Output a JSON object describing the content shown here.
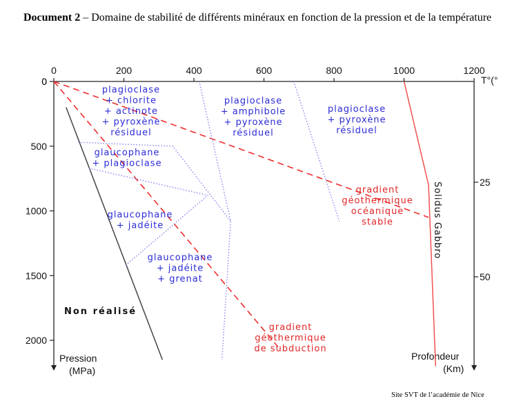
{
  "document": {
    "label": "Document 2",
    "title": " – Domaine de stabilité de différents minéraux en fonction de la pression et de la température",
    "credit": "Site SVT de l’académie de Nice"
  },
  "chart_data": {
    "type": "line",
    "x_axis": {
      "label": "T°(°",
      "ticks": [
        0,
        200,
        400,
        600,
        800,
        1000,
        1200
      ],
      "range": [
        0,
        1200
      ]
    },
    "y_axis_left": {
      "label_line1": "Pression",
      "label_line2": "(MPa)",
      "ticks": [
        0,
        500,
        1000,
        1500,
        2000
      ],
      "range": [
        0,
        2200
      ]
    },
    "y_axis_right": {
      "label_line1": "Profondeur",
      "label_line2": "(Km)",
      "ticks": [
        25,
        50
      ]
    },
    "series": [
      {
        "name": "Solidus Gabbro",
        "style": "solid",
        "color": "#f05050",
        "points": [
          [
            1000,
            0
          ],
          [
            1070,
            800
          ],
          [
            1090,
            2200
          ]
        ]
      },
      {
        "name": "gradient géothermique océanique stable",
        "style": "dashed",
        "color": "#ee2c2c",
        "points": [
          [
            0,
            0
          ],
          [
            1070,
            1050
          ]
        ]
      },
      {
        "name": "gradient géothermique de subduction",
        "style": "dashed",
        "color": "#ee2c2c",
        "points": [
          [
            0,
            0
          ],
          [
            640,
            2050
          ]
        ]
      },
      {
        "name": "",
        "style": "solid",
        "color": "#444444",
        "points": [
          [
            35,
            200
          ],
          [
            310,
            2150
          ]
        ]
      },
      {
        "name": "",
        "style": "dotted",
        "color": "#7a7af0",
        "points": [
          [
            415,
            0
          ],
          [
            505,
            1080
          ],
          [
            480,
            2150
          ]
        ]
      },
      {
        "name": "",
        "style": "dotted",
        "color": "#7a7af0",
        "points": [
          [
            685,
            0
          ],
          [
            815,
            1080
          ]
        ]
      },
      {
        "name": "",
        "style": "dotted",
        "color": "#7a7af0",
        "points": [
          [
            70,
            470
          ],
          [
            340,
            500
          ],
          [
            505,
            1080
          ]
        ]
      },
      {
        "name": "",
        "style": "dotted",
        "color": "#7a7af0",
        "points": [
          [
            100,
            670
          ],
          [
            440,
            880
          ]
        ]
      },
      {
        "name": "",
        "style": "dotted",
        "color": "#7a7af0",
        "points": [
          [
            205,
            1420
          ],
          [
            440,
            880
          ]
        ]
      }
    ],
    "field_labels": [
      {
        "id": "f1",
        "lines": [
          "plagioclase",
          "+ chlorite",
          "+ actinote",
          "+ pyroxène",
          "résiduel"
        ]
      },
      {
        "id": "f2",
        "lines": [
          "plagioclase",
          "+ amphibole",
          "+ pyroxène",
          "résiduel"
        ]
      },
      {
        "id": "f3",
        "lines": [
          "plagioclase",
          "+ pyroxène",
          "résiduel"
        ]
      },
      {
        "id": "f4",
        "lines": [
          "glaucophane",
          "+ plagioclase"
        ]
      },
      {
        "id": "f5",
        "lines": [
          "glaucophane",
          "+ jadéite"
        ]
      },
      {
        "id": "f6",
        "lines": [
          "glaucophane",
          "+ jadéite",
          "+ grenat"
        ]
      }
    ],
    "annotations": {
      "non_realise": "Non réalisé",
      "solidus": "Solidus Gabbro",
      "gradient_ocean": [
        "gradient",
        "géothermique",
        "océanique",
        "stable"
      ],
      "gradient_subduction": [
        "gradient",
        "géothermique",
        "de subduction"
      ]
    },
    "grid": false
  }
}
